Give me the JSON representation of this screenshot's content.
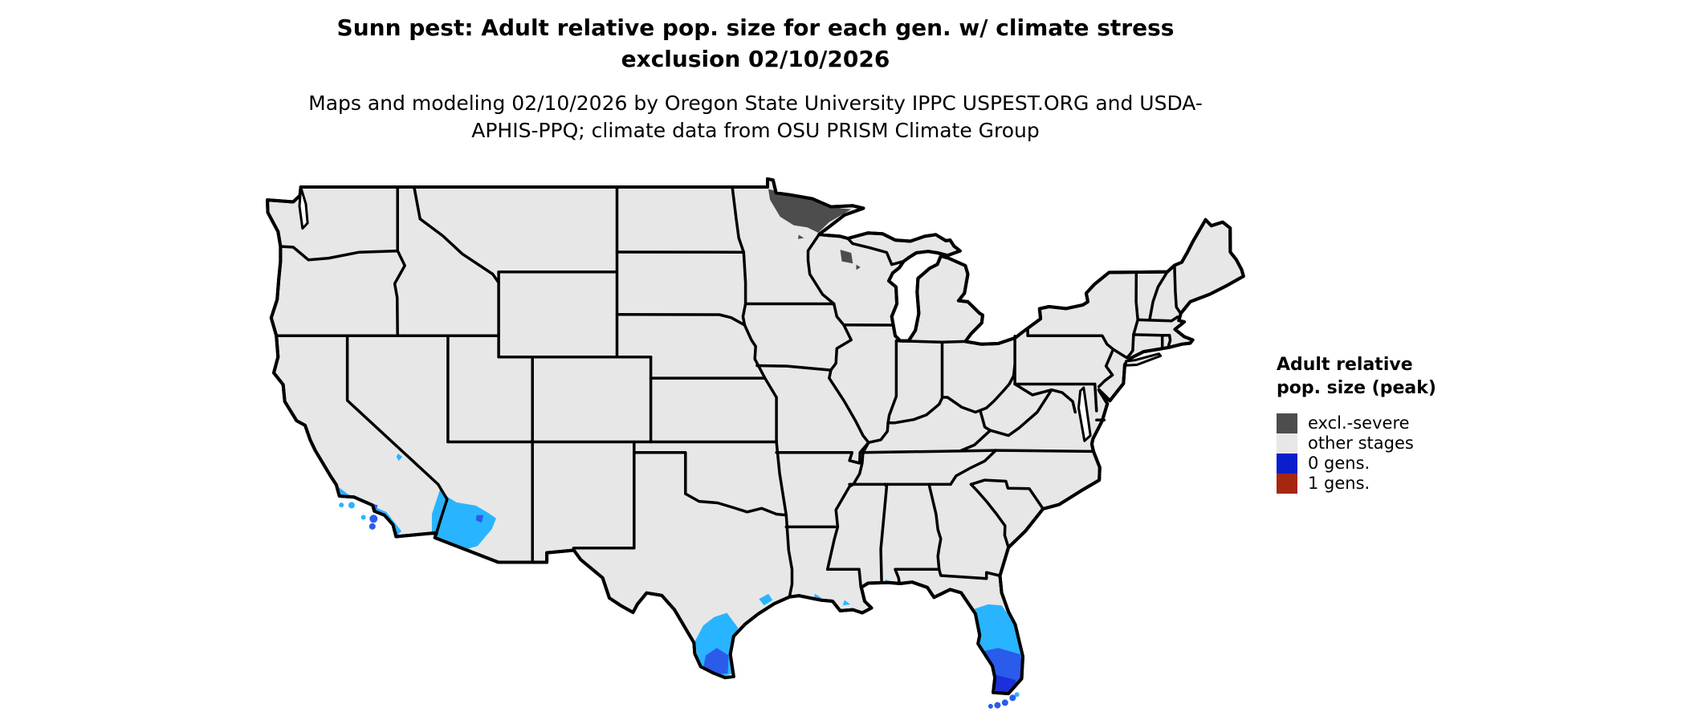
{
  "figure": {
    "title": "Sunn pest: Adult relative pop. size for each gen. w/ climate stress exclusion 02/10/2026",
    "subtitle": "Maps and modeling 02/10/2026 by Oregon State University IPPC USPEST.ORG and USDA-APHIS-PPQ; climate data from OSU PRISM Climate Group"
  },
  "legend": {
    "title": "Adult relative pop. size (peak)",
    "items": [
      {
        "label": "excl.-severe",
        "color": "#4d4d4d"
      },
      {
        "label": "other stages",
        "color": "#e7e7e7"
      },
      {
        "label": "0 gens.",
        "color": "#0a1ecd"
      },
      {
        "label": "1 gens.",
        "color": "#a52712"
      }
    ]
  },
  "map": {
    "colors": {
      "land": "#e7e7e7",
      "border": "#000000",
      "water": "#ffffff",
      "excl_severe_patch": "#4d4d4d",
      "gen0_low": "#29b4ff",
      "gen0_mid": "#2a5cec",
      "gen0_high": "#1d2fd8"
    }
  },
  "chart_data": {
    "type": "choropleth_map",
    "region": "conterminous United States",
    "legend_title": "Adult relative pop. size (peak)",
    "categories": [
      {
        "label": "excl.-severe",
        "color": "#4d4d4d",
        "shown_in": "northern Minnesota arrowhead and north-central Wisconsin"
      },
      {
        "label": "other stages",
        "color": "#e7e7e7",
        "shown_in": "most of the conterminous United States"
      },
      {
        "label": "0 gens.",
        "color": "#0a1ecd",
        "shown_in": "southern coastal California, southwestern Arizona, south Texas, Gulf coast spots, central and southern Florida (light blue to deep blue gradient)"
      },
      {
        "label": "1 gens.",
        "color": "#a52712",
        "shown_in": "not visible on map"
      }
    ]
  }
}
